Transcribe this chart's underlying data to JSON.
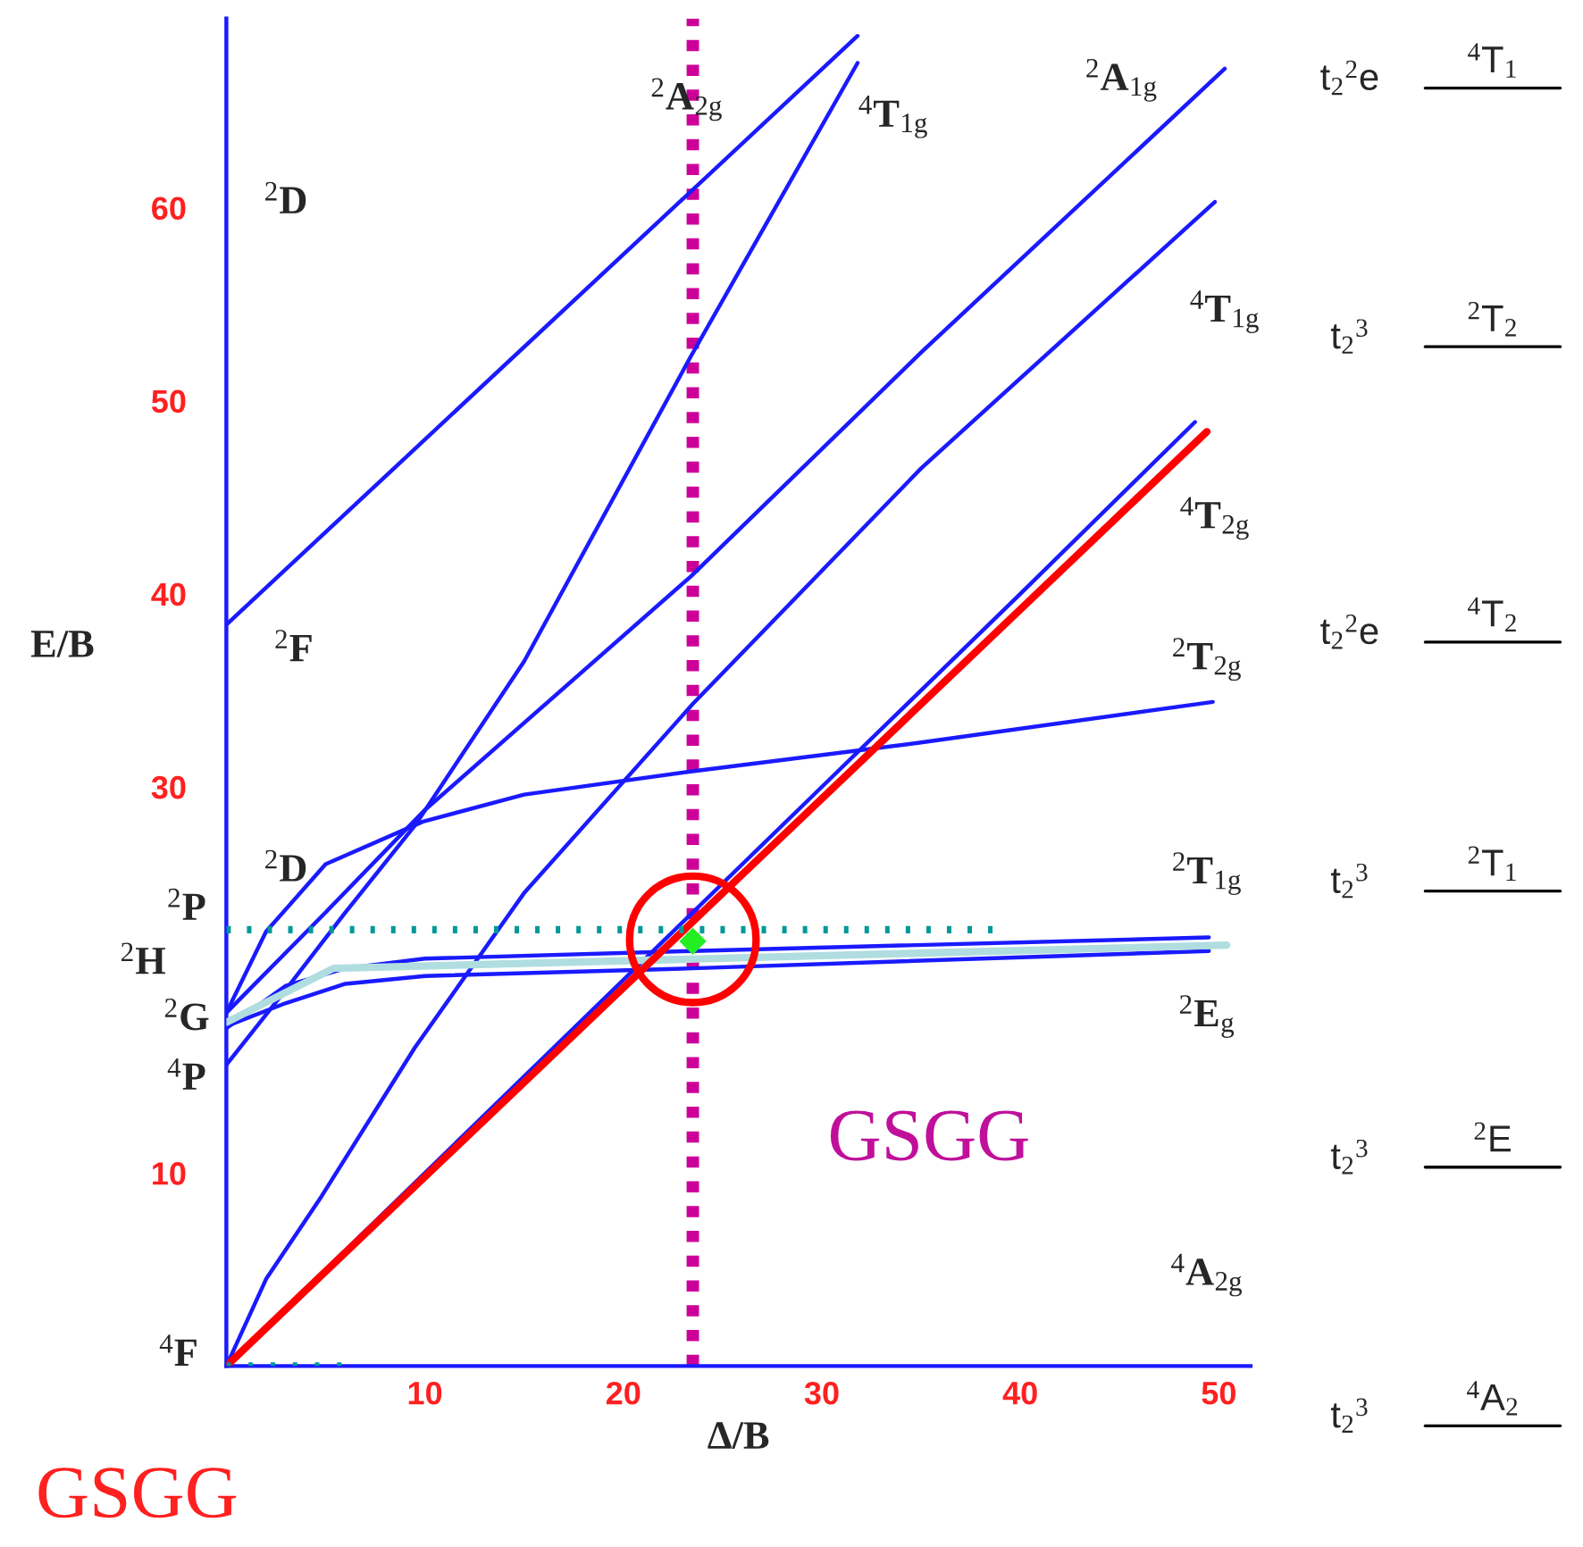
{
  "chart_data": {
    "type": "line",
    "xlabel": "Δ/B",
    "ylabel": "E/B",
    "xlim": [
      0,
      51.6
    ],
    "ylim": [
      0,
      69.8
    ],
    "xticks": [
      10,
      20,
      30,
      40,
      50
    ],
    "yticks": [
      10,
      30,
      40,
      50,
      60
    ],
    "grid": false,
    "ref_lines": [
      {
        "axis": "x",
        "value": 23.5,
        "label": null,
        "color": "#cc0099",
        "line_style": "dotted"
      }
    ],
    "series": [
      {
        "color": "#1a1aff",
        "x": [
          0,
          10,
          20,
          30,
          40,
          48.8
        ],
        "values": [
          0,
          10,
          20,
          30,
          40,
          48.9
        ]
      },
      {
        "color": "#1a1aff",
        "x": [
          0,
          2,
          4.8,
          9.5,
          15,
          23.5,
          35,
          49.8
        ],
        "values": [
          0,
          4.5,
          8.8,
          16.5,
          24.5,
          34.3,
          46.5,
          60.3
        ]
      },
      {
        "color": "#1a1aff",
        "x": [
          0,
          3,
          6,
          9.5,
          15,
          23.4,
          31.8
        ],
        "values": [
          15.6,
          19.5,
          23.5,
          28,
          36.5,
          52.3,
          67.5
        ]
      },
      {
        "color": "#1a1aff",
        "x": [
          0,
          5,
          10,
          23.4,
          35,
          50.3
        ],
        "values": [
          18.3,
          23.5,
          28.8,
          40.9,
          52.5,
          67.2
        ]
      },
      {
        "color": "#1a1aff",
        "x": [
          0,
          2,
          5,
          9.9,
          15,
          23.4,
          35,
          49.7
        ],
        "values": [
          18.3,
          22.5,
          26,
          28.2,
          29.6,
          30.8,
          32.3,
          34.4
        ]
      },
      {
        "color": "#1a1aff",
        "x": [
          0,
          3,
          6,
          10,
          23.5,
          49.5
        ],
        "values": [
          17.5,
          19.7,
          20.6,
          21.1,
          21.5,
          22.2
        ]
      },
      {
        "color": "#1a1aff",
        "x": [
          0,
          3,
          6,
          10,
          23.5,
          49.5
        ],
        "values": [
          17.6,
          18.8,
          19.8,
          20.2,
          20.6,
          21.5
        ]
      },
      {
        "color": "#1a1aff",
        "x": [
          0,
          31.8
        ],
        "values": [
          38.4,
          68.9
        ]
      },
      {
        "color": "#b0dde0",
        "x": [
          0,
          5.4,
          50.4
        ],
        "values": [
          17.8,
          20.6,
          21.8
        ]
      },
      {
        "color": "#ff0000",
        "x": [
          0,
          49.4
        ],
        "values": [
          0,
          48.4
        ]
      },
      {
        "color": "#009999",
        "line_style": "dotted",
        "x": [
          0,
          38.6
        ],
        "values": [
          22.6,
          22.6
        ]
      },
      {
        "color": "#009999",
        "line_style": "dotted",
        "x": [
          0,
          5.8
        ],
        "values": [
          0,
          0
        ]
      },
      {
        "type": "scatter",
        "marker": "circle",
        "color": "#ff0000",
        "x": [
          23.5
        ],
        "values": [
          22.1
        ]
      },
      {
        "type": "scatter",
        "marker": "diamond",
        "color": "#22ee22",
        "x": [
          23.5
        ],
        "values": [
          22.0
        ]
      }
    ],
    "annotations": [
      "$^{2}$D",
      "$^{2}$F",
      "$^{2}$D",
      "$^{2}$P",
      "$^{2}$H",
      "$^{2}$G",
      "$^{4}$P",
      "$^{4}$F",
      "$^{2}$A$_{2g}$",
      "$^{4}$T$_{1g}$",
      "$^{2}$A$_{1g}$",
      "$^{4}$T$_{1g}$",
      "$^{4}$T$_{2g}$",
      "$^{2}$T$_{2g}$",
      "$^{2}$T$_{1g}$",
      "$^{2}$E$_{g}$",
      "$^{4}$A$_{2g}$",
      "GSGG",
      "GSGG",
      "t$_{2}$$^{2}$e",
      "$^{4}$T$_{1}$",
      "t$_{2}$$^{3}$",
      "$^{2}$T$_{2}$",
      "t$_{2}$$^{2}$e",
      "$^{4}$T$_{2}$",
      "t$_{2}$$^{3}$",
      "$^{2}$T$_{1}$",
      "t$_{2}$$^{3}$",
      "$^{2}$E",
      "t$_{2}$$^{3}$",
      "$^{4}$A$_{2}$"
    ]
  }
}
